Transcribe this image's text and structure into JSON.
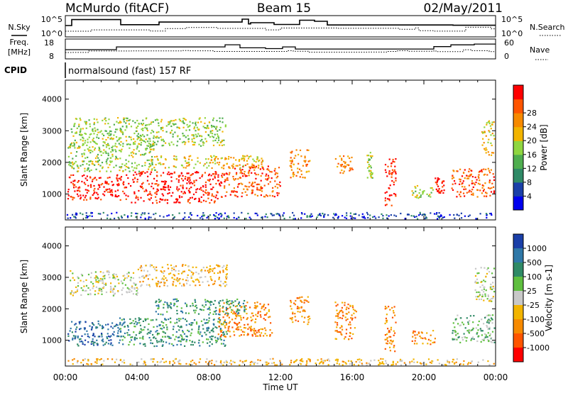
{
  "header": {
    "station": "McMurdo (fitACF)",
    "beam": "Beam 15",
    "date": "02/May/2011"
  },
  "sky_panel": {
    "left_label": "N.Sky",
    "right_label": "N.Search",
    "left_tick_top": "10^5",
    "left_tick_bottom": "10^0",
    "right_tick_top": "10^5",
    "right_tick_bottom": "10^0"
  },
  "freq_panel": {
    "left_label_line1": "Freq.",
    "left_label_line2": "[MHz]",
    "right_label": "Nave",
    "left_tick_top": "18",
    "left_tick_bottom": "8",
    "right_tick_top": "60",
    "right_tick_bottom": "0"
  },
  "cpid": {
    "label": "CPID",
    "text": "normalsound (fast) 157 RF"
  },
  "chart_data": [
    {
      "type": "heatmap",
      "title": "",
      "xlabel": "Time UT",
      "ylabel": "Slant Range [km]",
      "x_ticks": [
        "00:00",
        "04:00",
        "08:00",
        "12:00",
        "16:00",
        "20:00",
        "00:00"
      ],
      "x_range_hours": [
        0,
        24
      ],
      "y_ticks": [
        1000,
        2000,
        3000,
        4000
      ],
      "ylim": [
        180,
        4600
      ],
      "colorbar": {
        "label": "Power [dB]",
        "ticks": [
          4,
          8,
          12,
          16,
          20,
          24,
          28
        ],
        "colors": [
          "#0000ee",
          "#1a3fa8",
          "#2f8a66",
          "#4fae4f",
          "#8fd640",
          "#f2b400",
          "#f78a00",
          "#ff5500",
          "#ff0000"
        ]
      },
      "regions": [
        {
          "t": [
            0.1,
            3.5
          ],
          "r": [
            800,
            1600
          ],
          "c": 8
        },
        {
          "t": [
            3.6,
            8.7
          ],
          "r": [
            700,
            1700
          ],
          "c": 8
        },
        {
          "t": [
            8.7,
            12.0
          ],
          "r": [
            900,
            1900
          ],
          "c": 7
        },
        {
          "t": [
            0.1,
            5.0
          ],
          "r": [
            1700,
            2600
          ],
          "c": 4
        },
        {
          "t": [
            0.3,
            9.0
          ],
          "r": [
            2500,
            3400
          ],
          "c": 4
        },
        {
          "t": [
            5.0,
            11.0
          ],
          "r": [
            1800,
            2200
          ],
          "c": 5
        },
        {
          "t": [
            12.5,
            13.6
          ],
          "r": [
            1500,
            2400
          ],
          "c": 6
        },
        {
          "t": [
            15.0,
            16.0
          ],
          "r": [
            1600,
            2200
          ],
          "c": 6
        },
        {
          "t": [
            16.8,
            17.1
          ],
          "r": [
            1400,
            2300
          ],
          "c": 4
        },
        {
          "t": [
            17.8,
            18.4
          ],
          "r": [
            600,
            2100
          ],
          "c": 8
        },
        {
          "t": [
            19.3,
            20.5
          ],
          "r": [
            850,
            1250
          ],
          "c": 4
        },
        {
          "t": [
            20.6,
            21.1
          ],
          "r": [
            1000,
            1500
          ],
          "c": 8
        },
        {
          "t": [
            21.5,
            23.9
          ],
          "r": [
            900,
            1800
          ],
          "c": 7
        },
        {
          "t": [
            23.2,
            23.9
          ],
          "r": [
            2200,
            3300
          ],
          "c": 5
        },
        {
          "t": [
            0.0,
            24.0
          ],
          "r": [
            200,
            400
          ],
          "c": 1
        }
      ]
    },
    {
      "type": "heatmap",
      "title": "",
      "xlabel": "Time UT",
      "ylabel": "Slant Range [km]",
      "x_ticks": [
        "00:00",
        "04:00",
        "08:00",
        "12:00",
        "16:00",
        "20:00",
        "00:00"
      ],
      "x_range_hours": [
        0,
        24
      ],
      "y_ticks": [
        1000,
        2000,
        3000,
        4000
      ],
      "ylim": [
        180,
        4600
      ],
      "colorbar": {
        "label": "Velocity [m s-1]",
        "ticks": [
          1000,
          500,
          100,
          25,
          -25,
          -100,
          -500,
          -1000
        ],
        "colors": [
          "#1a3fa8",
          "#2f78a8",
          "#2f8a66",
          "#5fbf3f",
          "#c8c8c8",
          "#f2b400",
          "#f78a00",
          "#ff5500",
          "#ff0000"
        ]
      },
      "regions": [
        {
          "t": [
            0.1,
            3.0
          ],
          "r": [
            800,
            1600
          ],
          "c": 1
        },
        {
          "t": [
            3.0,
            9.0
          ],
          "r": [
            800,
            1700
          ],
          "c": 2
        },
        {
          "t": [
            8.5,
            11.5
          ],
          "r": [
            1100,
            2200
          ],
          "c": 6
        },
        {
          "t": [
            0.2,
            4.0
          ],
          "r": [
            2400,
            3200
          ],
          "c": 4
        },
        {
          "t": [
            4.0,
            9.0
          ],
          "r": [
            2700,
            3400
          ],
          "c": 5
        },
        {
          "t": [
            5.0,
            10.0
          ],
          "r": [
            1800,
            2300
          ],
          "c": 2
        },
        {
          "t": [
            12.5,
            13.6
          ],
          "r": [
            1500,
            2400
          ],
          "c": 6
        },
        {
          "t": [
            15.0,
            16.2
          ],
          "r": [
            1000,
            2200
          ],
          "c": 6
        },
        {
          "t": [
            17.8,
            18.4
          ],
          "r": [
            600,
            2100
          ],
          "c": 6
        },
        {
          "t": [
            19.3,
            20.6
          ],
          "r": [
            850,
            1300
          ],
          "c": 6
        },
        {
          "t": [
            21.5,
            23.9
          ],
          "r": [
            900,
            1800
          ],
          "c": 3
        },
        {
          "t": [
            22.8,
            23.9
          ],
          "r": [
            2200,
            3300
          ],
          "c": 4
        },
        {
          "t": [
            0.0,
            24.0
          ],
          "r": [
            200,
            400
          ],
          "c": 5
        }
      ]
    }
  ]
}
